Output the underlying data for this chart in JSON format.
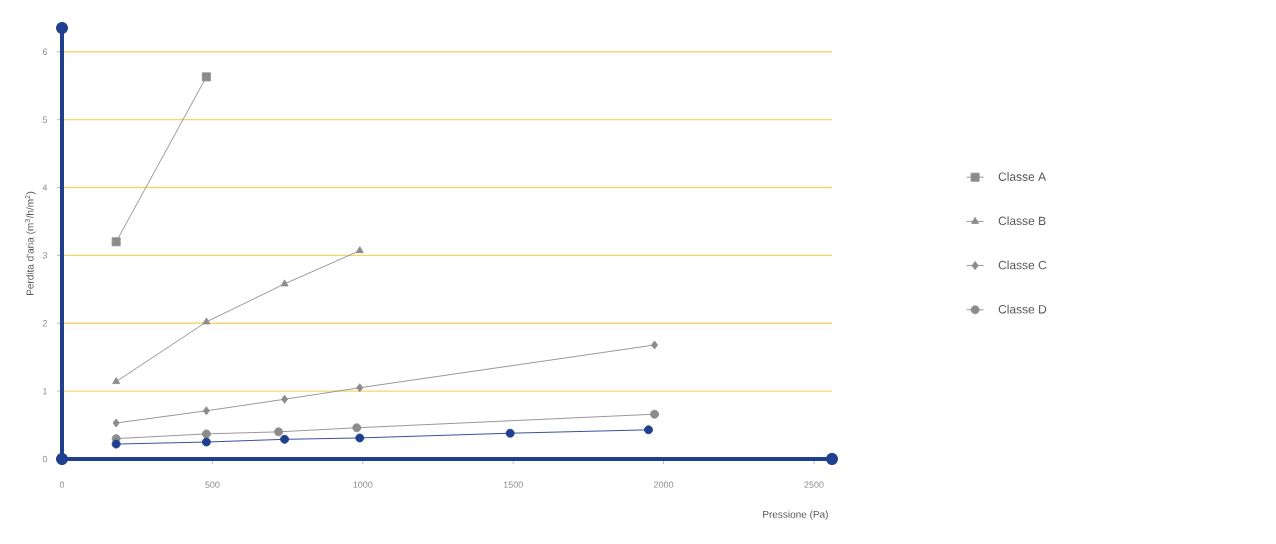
{
  "chart_data": {
    "type": "line",
    "xlabel": "Pressione (Pa)",
    "ylabel": "Perdita d'aria (m$^{3}$/h/m$^{2}$)",
    "xlim": [
      0,
      2560
    ],
    "ylim": [
      0,
      6.35
    ],
    "xticks": [
      0,
      500,
      1000,
      1500,
      2000,
      2500
    ],
    "yticks": [
      0,
      1,
      2,
      3,
      4,
      5,
      6
    ],
    "grid": "y",
    "legend": "right",
    "line_style": "solid",
    "series": [
      {
        "name": "Classe A",
        "color": "#8c8c8c",
        "marker": "square",
        "x": [
          180,
          480
        ],
        "values": [
          3.2,
          5.63
        ]
      },
      {
        "name": "Classe B",
        "color": "#8c8c8c",
        "marker": "triangle",
        "x": [
          180,
          480,
          740,
          990
        ],
        "values": [
          1.14,
          2.02,
          2.58,
          3.07
        ]
      },
      {
        "name": "Classe C",
        "color": "#8c8c8c",
        "marker": "diamond",
        "x": [
          180,
          480,
          740,
          990,
          1970
        ],
        "values": [
          0.53,
          0.71,
          0.88,
          1.05,
          1.68
        ]
      },
      {
        "name": "Classe D",
        "color": "#8c8c8c",
        "marker": "circle",
        "x": [
          180,
          480,
          720,
          980,
          1970
        ],
        "values": [
          0.3,
          0.37,
          0.4,
          0.46,
          0.66
        ]
      },
      {
        "color": "#1f3f8f",
        "marker": "circle",
        "x": [
          180,
          480,
          740,
          990,
          1490,
          1950
        ],
        "values": [
          0.22,
          0.25,
          0.29,
          0.31,
          0.38,
          0.43
        ]
      }
    ]
  }
}
